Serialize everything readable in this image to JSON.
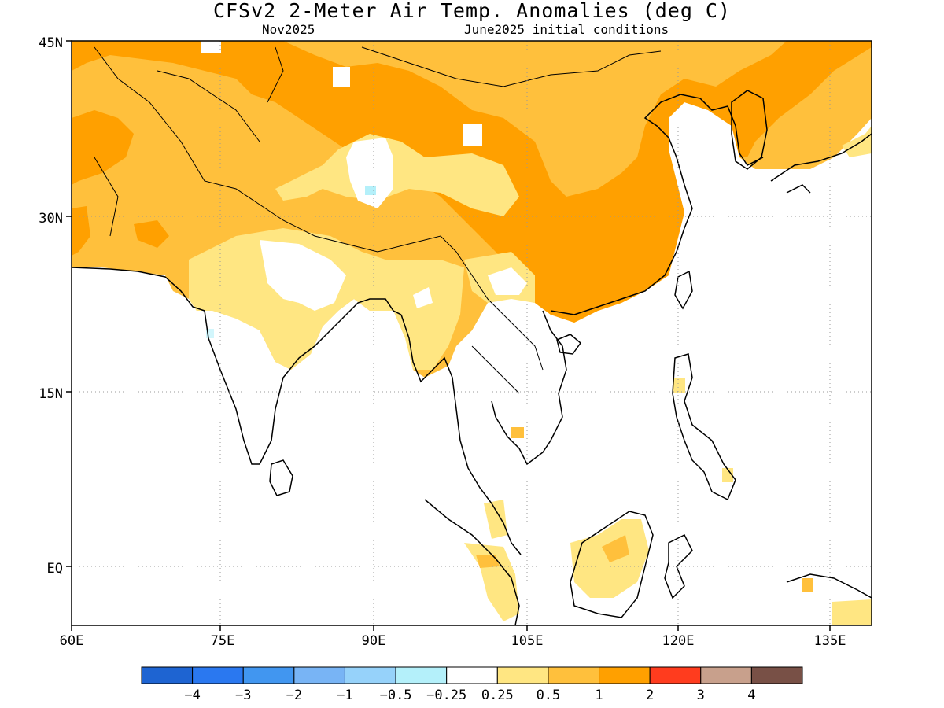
{
  "header": {
    "title": "CFSv2 2-Meter Air Temp. Anomalies (deg C)",
    "valid_month": "Nov2025",
    "init_conditions": "June2025 initial conditions"
  },
  "map": {
    "region": "South and East Asia",
    "lat_labels": [
      "45N",
      "30N",
      "15N",
      "EQ"
    ],
    "lon_labels": [
      "60E",
      "75E",
      "90E",
      "105E",
      "120E",
      "135E"
    ],
    "gridlines": "dotted"
  },
  "colorbar": {
    "colors": [
      "#1e64d2",
      "#2a78f0",
      "#4196f0",
      "#78b4f5",
      "#96d2fa",
      "#b4f0fa",
      "#ffffff",
      "#ffe682",
      "#ffc03c",
      "#ffa000",
      "#ff3c1e",
      "#c8a08c",
      "#785046"
    ],
    "labels": [
      "-4",
      "-3",
      "-2",
      "-1",
      "-0.5",
      "-0.25",
      "0.25",
      "0.5",
      "1",
      "2",
      "3",
      "4"
    ]
  },
  "colors": {
    "anomaly_0_25_to_0_5": "#ffe682",
    "anomaly_0_5_to_1": "#ffc03c",
    "anomaly_1_to_2": "#ffa000",
    "anomaly_neg_0_5": "#b4f0fa"
  }
}
